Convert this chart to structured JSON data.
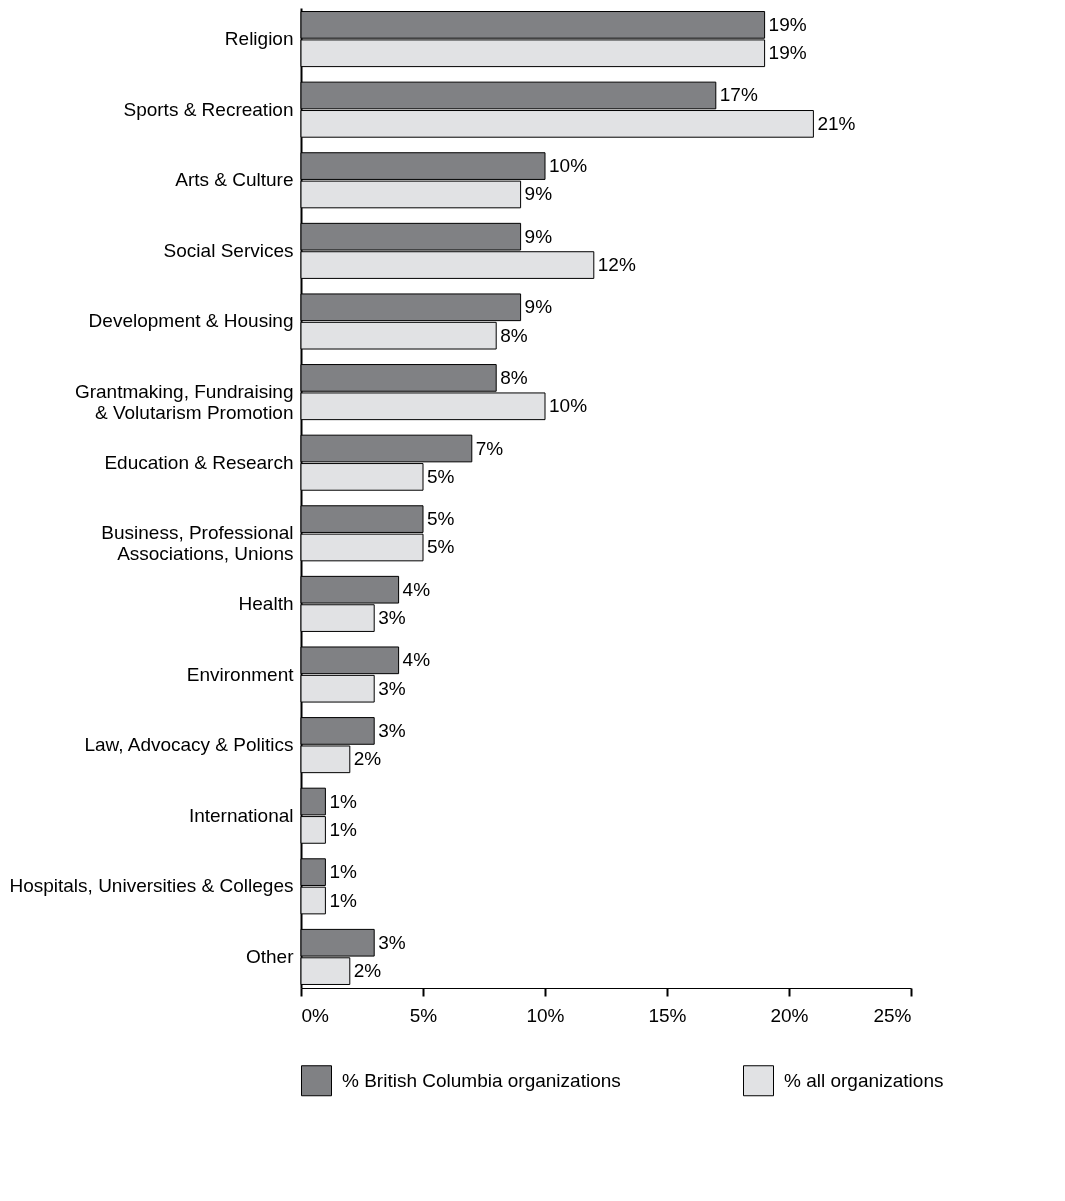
{
  "chart_data": {
    "type": "bar",
    "orientation": "horizontal",
    "categories": [
      "Religion",
      "Sports & Recreation",
      "Arts & Culture",
      "Social Services",
      "Development & Housing",
      "Grantmaking, Fundraising & Volutarism Promotion",
      "Education & Research",
      "Business, Professional Associations, Unions",
      "Health",
      "Environment",
      "Law, Advocacy & Politics",
      "International",
      "Hospitals, Universities & Colleges",
      "Other"
    ],
    "series": [
      {
        "name": "% British Columbia organizations",
        "color": "#808184",
        "values": [
          19,
          17,
          10,
          9,
          9,
          8,
          7,
          5,
          4,
          4,
          3,
          1,
          1,
          3
        ],
        "value_labels": [
          "19%",
          "17%",
          "10%",
          "9%",
          "9%",
          "8%",
          "7%",
          "5%",
          "4%",
          "4%",
          "3%",
          "1%",
          "1%",
          "3%"
        ]
      },
      {
        "name": "% all organizations",
        "color": "#e1e2e4",
        "values": [
          19,
          21,
          9,
          12,
          8,
          10,
          5,
          5,
          3,
          3,
          2,
          1,
          1,
          2
        ],
        "value_labels": [
          "19%",
          "21%",
          "9%",
          "12%",
          "8%",
          "10%",
          "5%",
          "5%",
          "3%",
          "3%",
          "2%",
          "1%",
          "1%",
          "2%"
        ]
      }
    ],
    "xlim": [
      0,
      25
    ],
    "xticks": [
      {
        "value": 0,
        "label": "0%"
      },
      {
        "value": 5,
        "label": "5%"
      },
      {
        "value": 10,
        "label": "10%"
      },
      {
        "value": 15,
        "label": "15%"
      },
      {
        "value": 20,
        "label": "20%"
      },
      {
        "value": 25,
        "label": "25%"
      }
    ],
    "grid": false,
    "legend": "bottom"
  }
}
